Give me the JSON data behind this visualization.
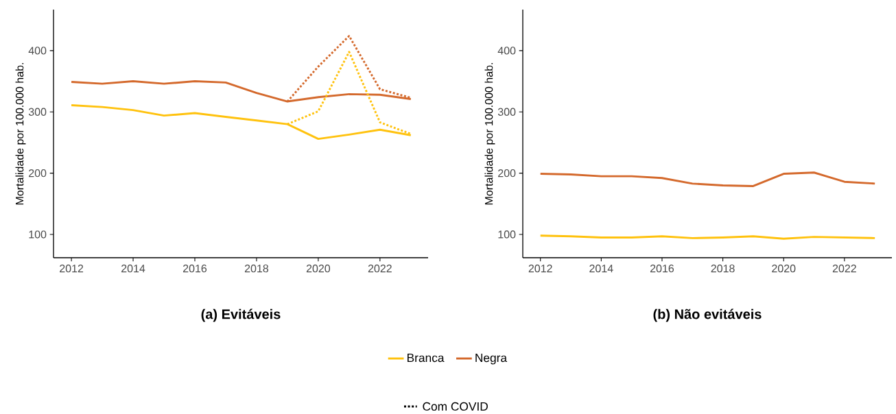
{
  "chart_data": [
    {
      "type": "line",
      "title": "**(a) Evitáveis**",
      "ylabel": "Mortalidade por 100.000 hab.",
      "x": [
        2012,
        2013,
        2014,
        2015,
        2016,
        2017,
        2018,
        2019,
        2020,
        2021,
        2022,
        2023
      ],
      "xlim": [
        2011.42,
        2023.56
      ],
      "ylim": [
        62,
        467
      ],
      "xticks": [
        2012,
        2014,
        2016,
        2018,
        2020,
        2022
      ],
      "yticks": [
        100,
        200,
        300,
        400
      ],
      "legend": "bottom",
      "annotations": [
        "Com COVID"
      ],
      "series": [
        {
          "name": "Branca",
          "color": "#ffc20e",
          "values": [
            311,
            308,
            303,
            294,
            298,
            292,
            286,
            280,
            256,
            263,
            271,
            262
          ]
        },
        {
          "name": "Negra",
          "color": "#d4692c",
          "values": [
            349,
            346,
            350,
            346,
            350,
            348,
            331,
            317,
            324,
            329,
            328,
            321
          ]
        },
        {
          "color": "#ffc20e",
          "line_style": "dotted",
          "x": [
            2019,
            2020,
            2021,
            2022,
            2023
          ],
          "values": [
            280,
            301,
            398,
            283,
            264
          ]
        },
        {
          "color": "#d4692c",
          "line_style": "dotted",
          "x": [
            2019,
            2020,
            2021,
            2022,
            2023
          ],
          "values": [
            317,
            374,
            424,
            337,
            323
          ]
        }
      ]
    },
    {
      "type": "line",
      "title": "**(b) Não evitáveis**",
      "ylabel": "Mortalidade por 100.000 hab.",
      "x": [
        2012,
        2013,
        2014,
        2015,
        2016,
        2017,
        2018,
        2019,
        2020,
        2021,
        2022,
        2023
      ],
      "xlim": [
        2011.42,
        2023.56
      ],
      "ylim": [
        62,
        467
      ],
      "xticks": [
        2012,
        2014,
        2016,
        2018,
        2020,
        2022
      ],
      "yticks": [
        100,
        200,
        300,
        400
      ],
      "series": [
        {
          "color": "#ffc20e",
          "values": [
            98,
            97,
            95,
            95,
            97,
            94,
            95,
            97,
            93,
            96,
            95,
            94
          ]
        },
        {
          "color": "#d4692c",
          "values": [
            199,
            198,
            195,
            195,
            192,
            183,
            180,
            179,
            199,
            201,
            186,
            183
          ]
        }
      ]
    }
  ]
}
